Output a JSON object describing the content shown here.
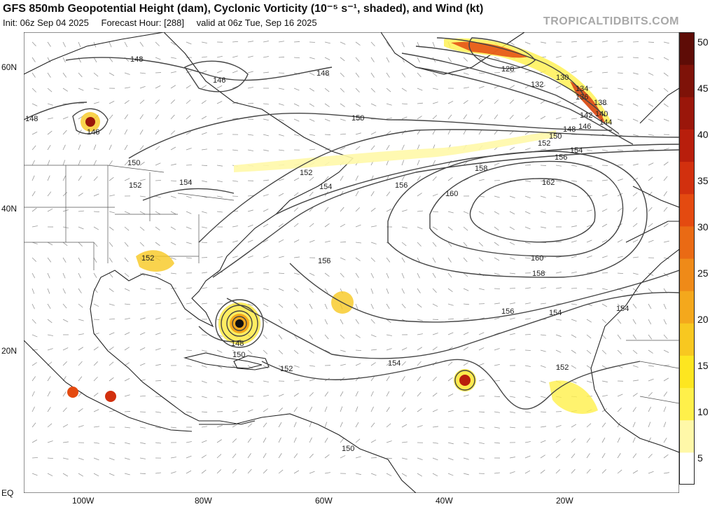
{
  "header": {
    "title": "GFS 850mb Geopotential Height (dam), Cyclonic Vorticity (10⁻⁵ s⁻¹, shaded), and Wind (kt)",
    "init": "Init: 06z Sep 04 2025",
    "forecast_hour": "Forecast Hour: [288]",
    "valid": "valid at 06z Tue, Sep 16 2025",
    "brand": "TROPICALTIDBITS.COM"
  },
  "axes": {
    "lat_labels": [
      "60N",
      "40N",
      "20N",
      "EQ"
    ],
    "lon_labels": [
      "100W",
      "80W",
      "60W",
      "40W",
      "20W"
    ]
  },
  "contour_labels": [
    "148",
    "148",
    "146",
    "146",
    "148",
    "150",
    "152",
    "154",
    "156",
    "152",
    "150",
    "148",
    "150",
    "152",
    "154",
    "156",
    "158",
    "160",
    "162",
    "160",
    "158",
    "156",
    "154",
    "156",
    "154",
    "152",
    "150",
    "148",
    "146",
    "144",
    "142",
    "140",
    "138",
    "136",
    "134",
    "132",
    "130",
    "128",
    "154",
    "152",
    "150",
    "152",
    "154"
  ],
  "colorbar": {
    "ticks": [
      "50",
      "45",
      "40",
      "35",
      "30",
      "25",
      "20",
      "15",
      "10",
      "5"
    ],
    "colors": [
      "#ffffff",
      "#fff8a8",
      "#fff04a",
      "#fde620",
      "#f8c820",
      "#f4a81c",
      "#ef8a18",
      "#ea6a14",
      "#e44a10",
      "#d2300e",
      "#b81e0c",
      "#9a160a",
      "#7e1208",
      "#5e0c06"
    ]
  }
}
